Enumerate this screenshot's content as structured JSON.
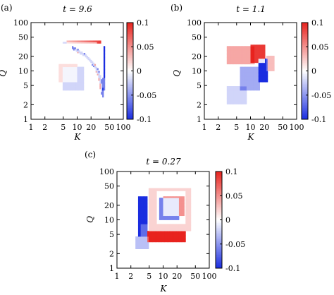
{
  "colors": {
    "positive": "#e8231e",
    "negative": "#1a2de0",
    "zero": "#ffffff",
    "axis": "#000000"
  },
  "chart_data": [
    {
      "type": "heatmap",
      "panel": "(a)",
      "title": "t = 9.6",
      "xlabel": "K",
      "ylabel": "Q",
      "x_scale": "log",
      "y_scale": "log",
      "xlim": [
        1,
        100
      ],
      "ylim": [
        1,
        100
      ],
      "xticks": [
        "1",
        "2",
        "5",
        "10",
        "20",
        "50",
        "100"
      ],
      "yticks": [
        "1",
        "2",
        "5",
        "10",
        "20",
        "50",
        "100"
      ],
      "colorbar": {
        "range": [
          -0.1,
          0.1
        ],
        "ticks": [
          "0.1",
          "0.05",
          "0",
          "-0.05",
          "-0.1"
        ]
      },
      "features": [
        {
          "kind": "band",
          "orientation": "horizontal",
          "sign": "positive",
          "q": 40,
          "k_from": 6,
          "k_to": 33,
          "value": 0.09
        },
        {
          "kind": "band",
          "orientation": "horizontal",
          "sign": "negative",
          "q": 38,
          "k_from": 5,
          "k_to": 26,
          "value": -0.05
        },
        {
          "kind": "curve",
          "sign": "negative",
          "points": [
            [
              8,
              30
            ],
            [
              14,
              22
            ],
            [
              20,
              16
            ],
            [
              28,
              10
            ],
            [
              33,
              6
            ],
            [
              36,
              3
            ]
          ],
          "value": -0.06
        },
        {
          "kind": "curve",
          "sign": "positive",
          "points": [
            [
              9,
              28
            ],
            [
              16,
              20
            ],
            [
              24,
              13
            ],
            [
              30,
              8
            ],
            [
              34,
              4
            ]
          ],
          "value": 0.04
        },
        {
          "kind": "band",
          "orientation": "vertical",
          "sign": "negative",
          "k": 38,
          "q_from": 7,
          "q_to": 32,
          "value": -0.1
        },
        {
          "kind": "band",
          "orientation": "vertical",
          "sign": "negative",
          "k": 37,
          "q_from": 4,
          "q_to": 7,
          "value": -0.06
        },
        {
          "kind": "patch",
          "sign": "negative",
          "k_from": 5,
          "k_to": 14,
          "q_from": 4,
          "q_to": 12,
          "value": -0.02
        },
        {
          "kind": "patch",
          "sign": "positive",
          "k_from": 4,
          "k_to": 10,
          "q_from": 6,
          "q_to": 14,
          "value": 0.015
        }
      ]
    },
    {
      "type": "heatmap",
      "panel": "(b)",
      "title": "t = 1.1",
      "xlabel": "K",
      "ylabel": "Q",
      "x_scale": "log",
      "y_scale": "log",
      "xlim": [
        1,
        100
      ],
      "ylim": [
        1,
        100
      ],
      "xticks": [
        "1",
        "2",
        "5",
        "10",
        "20",
        "50",
        "100"
      ],
      "yticks": [
        "1",
        "2",
        "5",
        "10",
        "20",
        "50",
        "100"
      ],
      "colorbar": {
        "range": [
          -0.1,
          0.1
        ],
        "ticks": [
          "0.1",
          "0.05",
          "0",
          "-0.05",
          "-0.1"
        ]
      },
      "features": [
        {
          "kind": "patch",
          "sign": "positive",
          "k_from": 3,
          "k_to": 12,
          "q_from": 14,
          "q_to": 32,
          "value": 0.04
        },
        {
          "kind": "patch",
          "sign": "positive",
          "k_from": 10,
          "k_to": 20,
          "q_from": 15,
          "q_to": 35,
          "value": 0.09
        },
        {
          "kind": "patch",
          "sign": "negative",
          "k_from": 15,
          "k_to": 24,
          "q_from": 6,
          "q_to": 18,
          "value": -0.1
        },
        {
          "kind": "patch",
          "sign": "negative",
          "k_from": 6,
          "k_to": 16,
          "q_from": 4,
          "q_to": 12,
          "value": -0.04
        },
        {
          "kind": "patch",
          "sign": "negative",
          "k_from": 3,
          "k_to": 8,
          "q_from": 2,
          "q_to": 5,
          "value": -0.02
        },
        {
          "kind": "patch",
          "sign": "positive",
          "k_from": 22,
          "k_to": 32,
          "q_from": 10,
          "q_to": 20,
          "value": 0.03
        }
      ]
    },
    {
      "type": "heatmap",
      "panel": "(c)",
      "title": "t = 0.27",
      "xlabel": "K",
      "ylabel": "Q",
      "x_scale": "log",
      "y_scale": "log",
      "xlim": [
        1,
        100
      ],
      "ylim": [
        1,
        100
      ],
      "xticks": [
        "1",
        "2",
        "5",
        "10",
        "20",
        "50",
        "100"
      ],
      "yticks": [
        "1",
        "2",
        "5",
        "10",
        "20",
        "50",
        "100"
      ],
      "colorbar": {
        "range": [
          -0.1,
          0.1
        ],
        "ticks": [
          "0.1",
          "0.05",
          "0",
          "-0.05",
          "-0.1"
        ]
      },
      "features": [
        {
          "kind": "patch",
          "sign": "negative",
          "k_from": 2.8,
          "k_to": 4.6,
          "q_from": 4.6,
          "q_to": 30,
          "value": -0.1
        },
        {
          "kind": "patch",
          "sign": "positive",
          "k_from": 4.6,
          "k_to": 30,
          "q_from": 3.6,
          "q_to": 6,
          "value": 0.1
        },
        {
          "kind": "patch",
          "sign": "negative",
          "k_from": 2.5,
          "k_to": 4.8,
          "q_from": 2.5,
          "q_to": 4.6,
          "value": -0.03
        },
        {
          "kind": "patch",
          "sign": "positive",
          "k_from": 5,
          "k_to": 40,
          "q_from": 6,
          "q_to": 45,
          "value": 0.02
        },
        {
          "kind": "patch",
          "sign": "negative",
          "k_from": 7,
          "k_to": 30,
          "q_from": 8,
          "q_to": 40,
          "value": -0.02
        },
        {
          "kind": "patch",
          "sign": "negative",
          "k_from": 8,
          "k_to": 22,
          "q_from": 10,
          "q_to": 28,
          "value": -0.06
        },
        {
          "kind": "patch",
          "sign": "positive",
          "k_from": 10,
          "k_to": 28,
          "q_from": 12,
          "q_to": 30,
          "value": 0.05
        },
        {
          "kind": "patch",
          "sign": "positive",
          "k_from": 3.2,
          "k_to": 4.4,
          "q_from": 4.6,
          "q_to": 8,
          "value": 0.03
        }
      ]
    }
  ]
}
